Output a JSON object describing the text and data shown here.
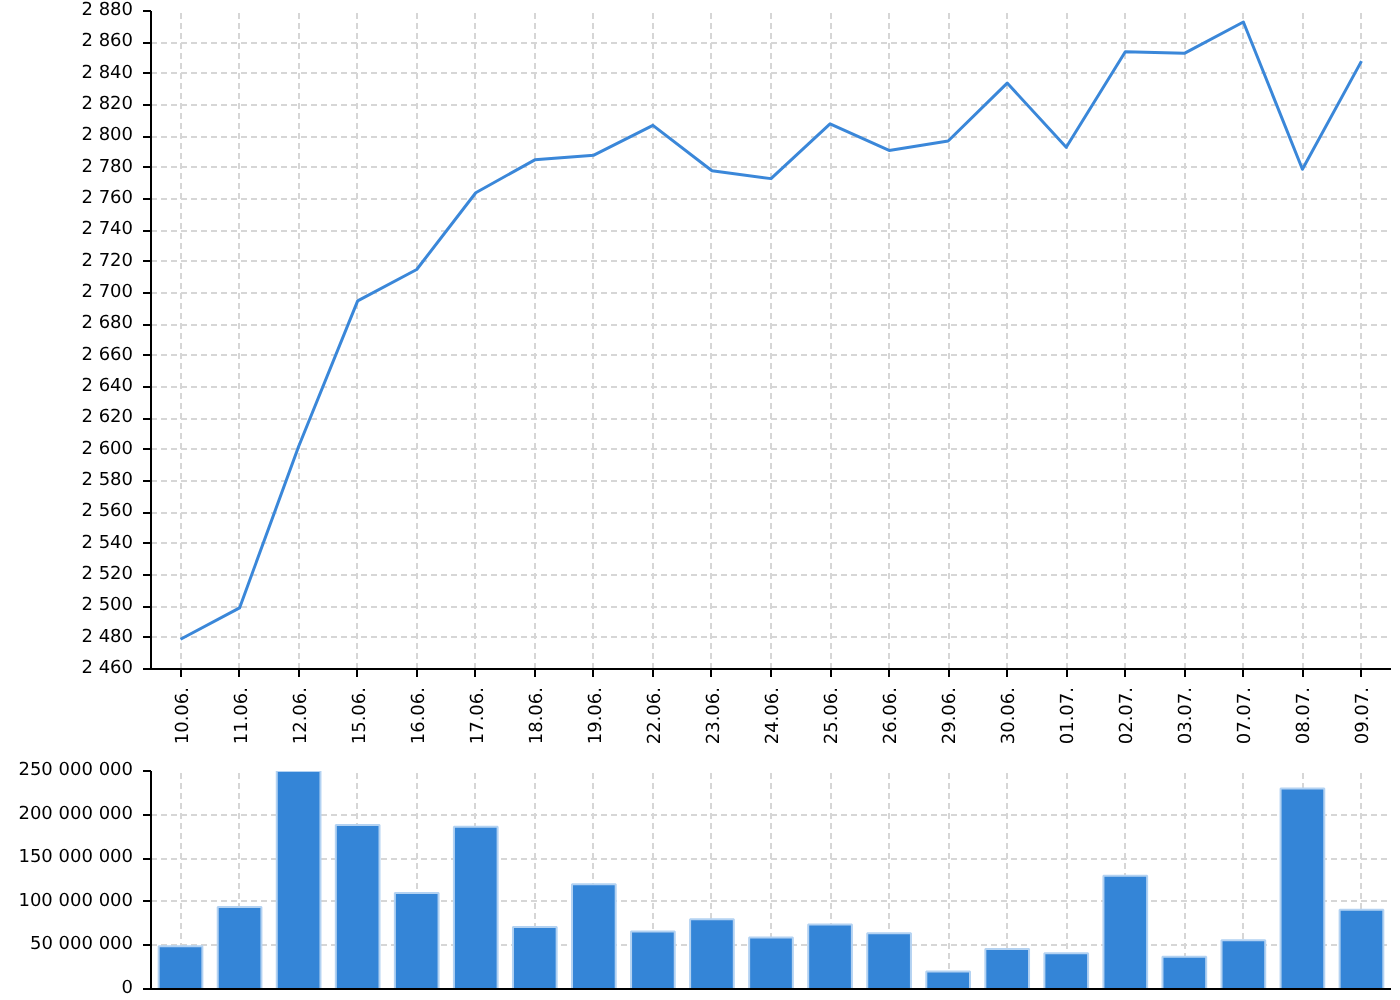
{
  "chart_data": [
    {
      "type": "line",
      "categories": [
        "10.06.",
        "11.06.",
        "12.06.",
        "15.06.",
        "16.06.",
        "17.06.",
        "18.06.",
        "19.06.",
        "22.06.",
        "23.06.",
        "24.06.",
        "25.06.",
        "26.06.",
        "29.06.",
        "30.06.",
        "01.07.",
        "02.07.",
        "03.07.",
        "07.07.",
        "08.07.",
        "09.07."
      ],
      "values": [
        2479,
        2499,
        2602,
        2695,
        2715,
        2764,
        2785,
        2788,
        2807,
        2778,
        2773,
        2808,
        2791,
        2797,
        2834,
        2793,
        2854,
        2853,
        2873,
        2779,
        2848
      ],
      "color": "#3a87d9",
      "ylim": [
        2460,
        2880
      ],
      "yticks": [
        {
          "value": 2460,
          "label": "2 460"
        },
        {
          "value": 2480,
          "label": "2 480"
        },
        {
          "value": 2500,
          "label": "2 500"
        },
        {
          "value": 2520,
          "label": "2 520"
        },
        {
          "value": 2540,
          "label": "2 540"
        },
        {
          "value": 2560,
          "label": "2 560"
        },
        {
          "value": 2580,
          "label": "2 580"
        },
        {
          "value": 2600,
          "label": "2 600"
        },
        {
          "value": 2620,
          "label": "2 620"
        },
        {
          "value": 2640,
          "label": "2 640"
        },
        {
          "value": 2660,
          "label": "2 660"
        },
        {
          "value": 2680,
          "label": "2 680"
        },
        {
          "value": 2700,
          "label": "2 700"
        },
        {
          "value": 2720,
          "label": "2 720"
        },
        {
          "value": 2740,
          "label": "2 740"
        },
        {
          "value": 2760,
          "label": "2 760"
        },
        {
          "value": 2780,
          "label": "2 780"
        },
        {
          "value": 2800,
          "label": "2 800"
        },
        {
          "value": 2820,
          "label": "2 820"
        },
        {
          "value": 2840,
          "label": "2 840"
        },
        {
          "value": 2860,
          "label": "2 860"
        },
        {
          "value": 2880,
          "label": "2 880"
        }
      ],
      "grid": true
    },
    {
      "type": "bar",
      "categories": [
        "10.06.",
        "11.06.",
        "12.06.",
        "15.06.",
        "16.06.",
        "17.06.",
        "18.06.",
        "19.06.",
        "22.06.",
        "23.06.",
        "24.06.",
        "25.06.",
        "26.06.",
        "29.06.",
        "30.06.",
        "01.07.",
        "02.07.",
        "03.07.",
        "07.07.",
        "08.07.",
        "09.07."
      ],
      "values": [
        49000000,
        94000000,
        250000000,
        188000000,
        110000000,
        186000000,
        71000000,
        120000000,
        66000000,
        80000000,
        59000000,
        74000000,
        64000000,
        20000000,
        46000000,
        41000000,
        130000000,
        37000000,
        56000000,
        230000000,
        91000000
      ],
      "color": "#3485d7",
      "ylim": [
        0,
        250000000
      ],
      "yticks": [
        0,
        {
          "value": 50000000,
          "label": "50 000 000"
        },
        {
          "value": 100000000,
          "label": "100 000 000"
        },
        {
          "value": 150000000,
          "label": "150 000 000"
        },
        {
          "value": 200000000,
          "label": "200 000 000"
        },
        {
          "value": 250000000,
          "label": "250 000 000"
        }
      ],
      "grid": true,
      "tick_labels": "y"
    }
  ]
}
